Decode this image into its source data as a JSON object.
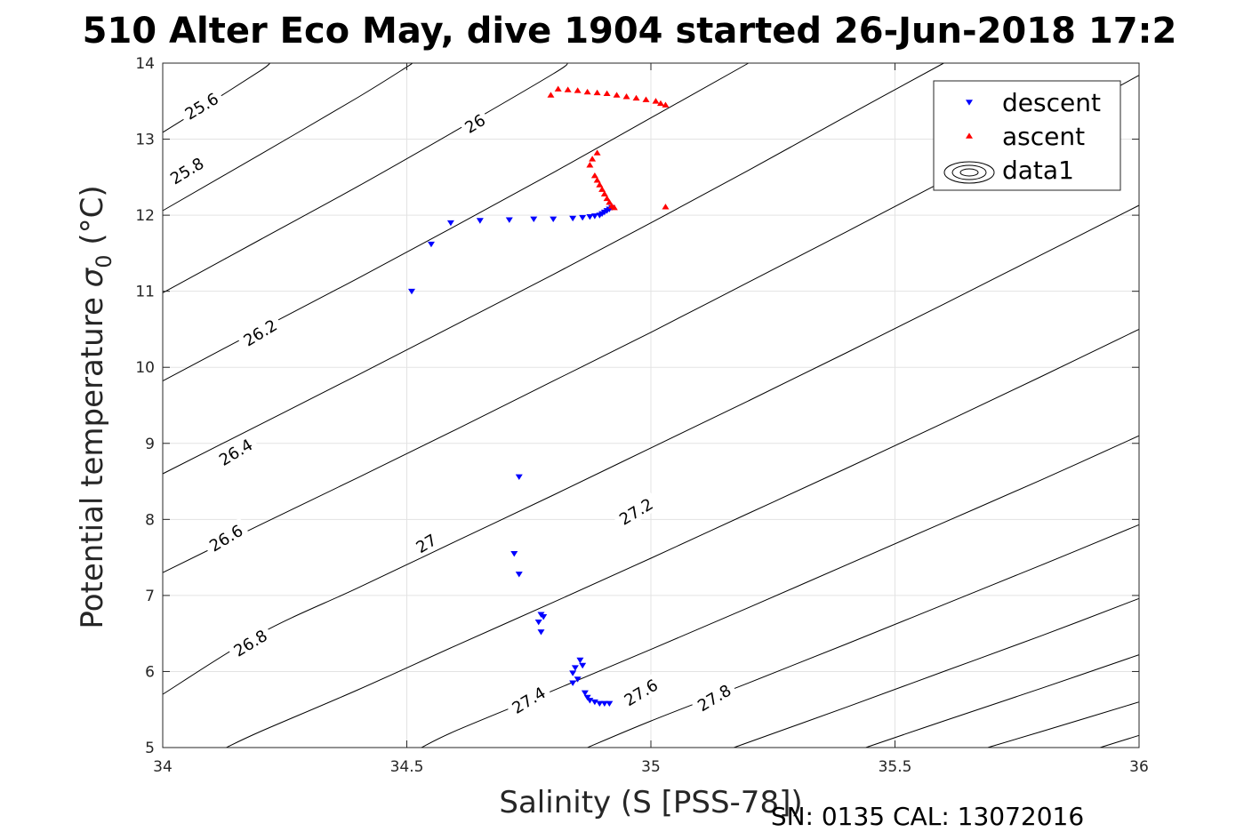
{
  "chart_data": {
    "type": "scatter",
    "title": "510 Alter Eco May, dive 1904 started 26-Jun-2018 17:2",
    "xlabel": "Salinity (S [PSS-78])",
    "ylabel_main": "Potential temperature ",
    "ylabel_sigma": "σ",
    "ylabel_sub": "0",
    "ylabel_unit": " (°C)",
    "xlim": [
      34,
      36
    ],
    "ylim": [
      5,
      14
    ],
    "x_ticks": [
      "34",
      "34.5",
      "35",
      "35.5",
      "36"
    ],
    "y_ticks": [
      "5",
      "6",
      "7",
      "8",
      "9",
      "10",
      "11",
      "12",
      "13",
      "14"
    ],
    "grid": true,
    "legend_position": "top-right",
    "legend": [
      {
        "name": "descent",
        "marker": "triangle-down",
        "color": "#0000ff"
      },
      {
        "name": "ascent",
        "marker": "triangle-up",
        "color": "#ff0000"
      },
      {
        "name": "data1",
        "marker": "contour-ellipses",
        "color": "#000000"
      }
    ],
    "series": [
      {
        "name": "descent",
        "color": "#0000ff",
        "marker": "triangle-down",
        "points": [
          [
            34.51,
            11.0
          ],
          [
            34.55,
            11.62
          ],
          [
            34.59,
            11.9
          ],
          [
            34.65,
            11.93
          ],
          [
            34.71,
            11.94
          ],
          [
            34.76,
            11.95
          ],
          [
            34.8,
            11.95
          ],
          [
            34.84,
            11.96
          ],
          [
            34.86,
            11.97
          ],
          [
            34.875,
            11.98
          ],
          [
            34.885,
            11.99
          ],
          [
            34.895,
            12.0
          ],
          [
            34.9,
            12.02
          ],
          [
            34.905,
            12.04
          ],
          [
            34.91,
            12.06
          ],
          [
            34.915,
            12.08
          ],
          [
            34.92,
            12.1
          ],
          [
            34.73,
            8.56
          ],
          [
            34.72,
            7.55
          ],
          [
            34.73,
            7.28
          ],
          [
            34.775,
            6.75
          ],
          [
            34.78,
            6.72
          ],
          [
            34.77,
            6.65
          ],
          [
            34.775,
            6.52
          ],
          [
            34.855,
            6.15
          ],
          [
            34.86,
            6.08
          ],
          [
            34.845,
            6.05
          ],
          [
            34.84,
            5.98
          ],
          [
            34.85,
            5.9
          ],
          [
            34.84,
            5.85
          ],
          [
            34.865,
            5.72
          ],
          [
            34.87,
            5.66
          ],
          [
            34.875,
            5.62
          ],
          [
            34.885,
            5.6
          ],
          [
            34.895,
            5.58
          ],
          [
            34.905,
            5.58
          ],
          [
            34.915,
            5.58
          ]
        ]
      },
      {
        "name": "ascent",
        "color": "#ff0000",
        "marker": "triangle-up",
        "points": [
          [
            34.795,
            13.58
          ],
          [
            34.81,
            13.66
          ],
          [
            34.83,
            13.65
          ],
          [
            34.85,
            13.64
          ],
          [
            34.87,
            13.62
          ],
          [
            34.89,
            13.61
          ],
          [
            34.91,
            13.6
          ],
          [
            34.93,
            13.58
          ],
          [
            34.95,
            13.56
          ],
          [
            34.97,
            13.54
          ],
          [
            34.99,
            13.52
          ],
          [
            35.01,
            13.5
          ],
          [
            35.02,
            13.47
          ],
          [
            35.03,
            13.45
          ],
          [
            34.89,
            12.82
          ],
          [
            34.88,
            12.74
          ],
          [
            34.875,
            12.66
          ],
          [
            34.885,
            12.52
          ],
          [
            34.89,
            12.46
          ],
          [
            34.895,
            12.4
          ],
          [
            34.9,
            12.34
          ],
          [
            34.905,
            12.28
          ],
          [
            34.91,
            12.22
          ],
          [
            34.915,
            12.17
          ],
          [
            34.92,
            12.12
          ],
          [
            34.925,
            12.1
          ],
          [
            35.03,
            12.11
          ]
        ]
      }
    ],
    "contour_levels": [
      "25.6",
      "25.8",
      "26",
      "26.2",
      "26.4",
      "26.6",
      "26.8",
      "27",
      "27.2",
      "27.4",
      "27.6",
      "27.8",
      "28",
      "28.2"
    ],
    "contours": [
      {
        "level": 25.6,
        "points": [
          [
            34.0,
            13.09
          ],
          [
            34.1,
            13.49
          ],
          [
            34.2,
            13.9
          ],
          [
            34.22,
            14.0
          ]
        ]
      },
      {
        "level": 25.8,
        "points": [
          [
            34.0,
            12.06
          ],
          [
            34.2,
            12.8
          ],
          [
            34.4,
            13.55
          ],
          [
            34.5,
            13.95
          ],
          [
            34.51,
            14.0
          ]
        ]
      },
      {
        "level": 26.0,
        "points": [
          [
            34.0,
            10.98
          ],
          [
            34.2,
            11.68
          ],
          [
            34.4,
            12.38
          ],
          [
            34.6,
            13.11
          ],
          [
            34.8,
            13.86
          ],
          [
            34.83,
            14.0
          ]
        ]
      },
      {
        "level": 26.2,
        "points": [
          [
            34.0,
            9.82
          ],
          [
            34.2,
            10.5
          ],
          [
            34.4,
            11.17
          ],
          [
            34.6,
            11.86
          ],
          [
            34.8,
            12.56
          ],
          [
            35.0,
            13.28
          ],
          [
            35.2,
            14.0
          ]
        ]
      },
      {
        "level": 26.4,
        "points": [
          [
            34.0,
            8.6
          ],
          [
            34.2,
            9.25
          ],
          [
            34.4,
            9.9
          ],
          [
            34.6,
            10.56
          ],
          [
            34.8,
            11.22
          ],
          [
            35.0,
            11.9
          ],
          [
            35.2,
            12.59
          ],
          [
            35.4,
            13.3
          ],
          [
            35.6,
            14.0
          ]
        ]
      },
      {
        "level": 26.6,
        "points": [
          [
            34.0,
            7.3
          ],
          [
            34.2,
            7.93
          ],
          [
            34.4,
            8.55
          ],
          [
            34.6,
            9.18
          ],
          [
            34.8,
            9.82
          ],
          [
            35.0,
            10.46
          ],
          [
            35.2,
            11.12
          ],
          [
            35.4,
            11.78
          ],
          [
            35.6,
            12.45
          ],
          [
            35.8,
            13.14
          ],
          [
            36.0,
            13.84
          ]
        ]
      },
      {
        "level": 26.8,
        "points": [
          [
            34.0,
            5.7
          ],
          [
            34.2,
            6.5
          ],
          [
            34.4,
            7.1
          ],
          [
            34.6,
            7.71
          ],
          [
            34.8,
            8.32
          ],
          [
            35.0,
            8.94
          ],
          [
            35.2,
            9.56
          ],
          [
            35.4,
            10.19
          ],
          [
            35.6,
            10.83
          ],
          [
            35.8,
            11.48
          ],
          [
            36.0,
            12.13
          ]
        ]
      },
      {
        "level": 27.0,
        "points": [
          [
            34.13,
            5.0
          ],
          [
            34.2,
            5.21
          ],
          [
            34.4,
            5.76
          ],
          [
            34.6,
            6.34
          ],
          [
            34.8,
            6.91
          ],
          [
            35.0,
            7.49
          ],
          [
            35.2,
            8.08
          ],
          [
            35.4,
            8.67
          ],
          [
            35.6,
            9.27
          ],
          [
            35.8,
            9.88
          ],
          [
            36.0,
            10.5
          ]
        ]
      },
      {
        "level": 27.2,
        "points": [
          [
            34.53,
            5.0
          ],
          [
            34.6,
            5.22
          ],
          [
            34.8,
            5.75
          ],
          [
            35.0,
            6.29
          ],
          [
            35.2,
            6.84
          ],
          [
            35.4,
            7.4
          ],
          [
            35.6,
            7.96
          ],
          [
            35.8,
            8.52
          ],
          [
            36.0,
            9.1
          ]
        ]
      },
      {
        "level": 27.4,
        "points": [
          [
            34.87,
            5.0
          ],
          [
            35.0,
            5.35
          ],
          [
            35.2,
            5.85
          ],
          [
            35.4,
            6.36
          ],
          [
            35.6,
            6.88
          ],
          [
            35.8,
            7.4
          ],
          [
            36.0,
            7.93
          ]
        ]
      },
      {
        "level": 27.6,
        "points": [
          [
            35.17,
            5.0
          ],
          [
            35.4,
            5.53
          ],
          [
            35.6,
            6.0
          ],
          [
            35.8,
            6.47
          ],
          [
            36.0,
            6.96
          ]
        ]
      },
      {
        "level": 27.8,
        "points": [
          [
            35.44,
            5.0
          ],
          [
            35.6,
            5.35
          ],
          [
            35.8,
            5.78
          ],
          [
            36.0,
            6.22
          ]
        ]
      },
      {
        "level": 28.0,
        "points": [
          [
            35.69,
            5.0
          ],
          [
            35.8,
            5.21
          ],
          [
            36.0,
            5.6
          ]
        ]
      },
      {
        "level": 28.2,
        "points": [
          [
            35.92,
            5.0
          ],
          [
            36.0,
            5.16
          ]
        ]
      }
    ],
    "contour_labels": [
      {
        "text": "25.6",
        "x": 34.08,
        "y": 13.43
      },
      {
        "text": "25.8",
        "x": 34.05,
        "y": 12.58
      },
      {
        "text": "26",
        "x": 34.64,
        "y": 13.2
      },
      {
        "text": "26.2",
        "x": 34.2,
        "y": 10.45
      },
      {
        "text": "26.4",
        "x": 34.15,
        "y": 8.88
      },
      {
        "text": "26.6",
        "x": 34.13,
        "y": 7.75
      },
      {
        "text": "26.8",
        "x": 34.18,
        "y": 6.37
      },
      {
        "text": "27",
        "x": 34.54,
        "y": 7.68
      },
      {
        "text": "27.2",
        "x": 34.97,
        "y": 8.1
      },
      {
        "text": "27.4",
        "x": 34.75,
        "y": 5.62
      },
      {
        "text": "27.6",
        "x": 34.98,
        "y": 5.72
      },
      {
        "text": "27.8",
        "x": 35.13,
        "y": 5.65
      }
    ],
    "footer": "SN: 0135  CAL: 13072016"
  }
}
